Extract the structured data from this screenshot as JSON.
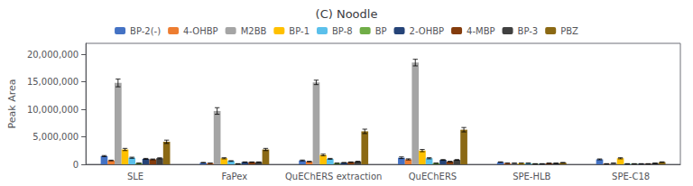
{
  "chart_data": {
    "type": "bar",
    "title": "(C) Noodle",
    "ylabel": "Peak Area",
    "categories": [
      "SLE",
      "FaPex",
      "QuEChERS extraction",
      "QuEChERS",
      "SPE-HLB",
      "SPE-C18"
    ],
    "series": [
      {
        "name": "BP-2(-)",
        "color": "#4472C4",
        "values": [
          1500000,
          300000,
          700000,
          1200000,
          400000,
          900000
        ],
        "errors": [
          100000,
          50000,
          80000,
          150000,
          50000,
          80000
        ]
      },
      {
        "name": "4-OHBP",
        "color": "#ED7D31",
        "values": [
          700000,
          200000,
          500000,
          900000,
          200000,
          100000
        ],
        "errors": [
          60000,
          30000,
          50000,
          100000,
          30000,
          20000
        ]
      },
      {
        "name": "M2BB",
        "color": "#A5A5A5",
        "values": [
          14800000,
          9700000,
          14900000,
          18500000,
          200000,
          200000
        ],
        "errors": [
          700000,
          600000,
          400000,
          600000,
          30000,
          30000
        ]
      },
      {
        "name": "BP-1",
        "color": "#FFC000",
        "values": [
          2700000,
          1100000,
          1700000,
          2500000,
          200000,
          1100000
        ],
        "errors": [
          200000,
          100000,
          150000,
          200000,
          30000,
          100000
        ]
      },
      {
        "name": "BP-8",
        "color": "#5BC0EB",
        "values": [
          1200000,
          600000,
          1000000,
          1100000,
          200000,
          100000
        ],
        "errors": [
          100000,
          60000,
          80000,
          100000,
          30000,
          20000
        ]
      },
      {
        "name": "BP",
        "color": "#70AD47",
        "values": [
          200000,
          100000,
          200000,
          200000,
          100000,
          100000
        ],
        "errors": [
          20000,
          15000,
          20000,
          20000,
          15000,
          15000
        ]
      },
      {
        "name": "2-OHBP",
        "color": "#264478",
        "values": [
          1000000,
          400000,
          300000,
          800000,
          100000,
          100000
        ],
        "errors": [
          80000,
          40000,
          30000,
          70000,
          15000,
          15000
        ]
      },
      {
        "name": "4-MBP",
        "color": "#843C0C",
        "values": [
          900000,
          400000,
          400000,
          500000,
          200000,
          100000
        ],
        "errors": [
          70000,
          40000,
          40000,
          50000,
          25000,
          15000
        ]
      },
      {
        "name": "BP-3",
        "color": "#404040",
        "values": [
          1100000,
          400000,
          500000,
          800000,
          200000,
          200000
        ],
        "errors": [
          90000,
          40000,
          50000,
          70000,
          25000,
          25000
        ]
      },
      {
        "name": "PBZ",
        "color": "#8B6914",
        "values": [
          4100000,
          2700000,
          6000000,
          6300000,
          300000,
          400000
        ],
        "errors": [
          300000,
          200000,
          400000,
          400000,
          40000,
          50000
        ]
      }
    ],
    "ylim": [
      0,
      22000000
    ],
    "yticks": [
      0,
      {
        "value": 5000000,
        "label": "5,000,000"
      },
      {
        "value": 10000000,
        "label": "10,000,000"
      },
      {
        "value": 15000000,
        "label": "15,000,000"
      },
      {
        "value": 20000000,
        "label": "20,000,000"
      }
    ],
    "grid": false,
    "legend": "top"
  }
}
